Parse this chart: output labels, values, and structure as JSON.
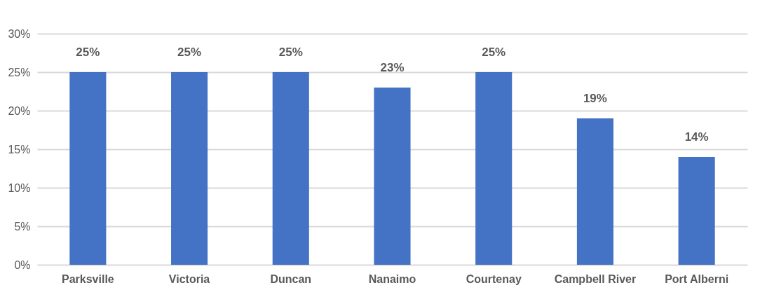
{
  "chart_data": {
    "type": "bar",
    "categories": [
      "Parksville",
      "Victoria",
      "Duncan",
      "Nanaimo",
      "Courtenay",
      "Campbell River",
      "Port Alberni"
    ],
    "values": [
      25,
      25,
      25,
      23,
      25,
      19,
      14
    ],
    "value_labels": [
      "25%",
      "25%",
      "25%",
      "23%",
      "25%",
      "19%",
      "14%"
    ],
    "color": "#4472c4",
    "ylim": [
      0,
      30
    ],
    "yticks": [
      {
        "value": 0,
        "label": "0%"
      },
      {
        "value": 5,
        "label": "5%"
      },
      {
        "value": 10,
        "label": "10%"
      },
      {
        "value": 15,
        "label": "15%"
      },
      {
        "value": 20,
        "label": "20%"
      },
      {
        "value": 25,
        "label": "25%"
      },
      {
        "value": 30,
        "label": "30%"
      }
    ],
    "grid": "y"
  }
}
